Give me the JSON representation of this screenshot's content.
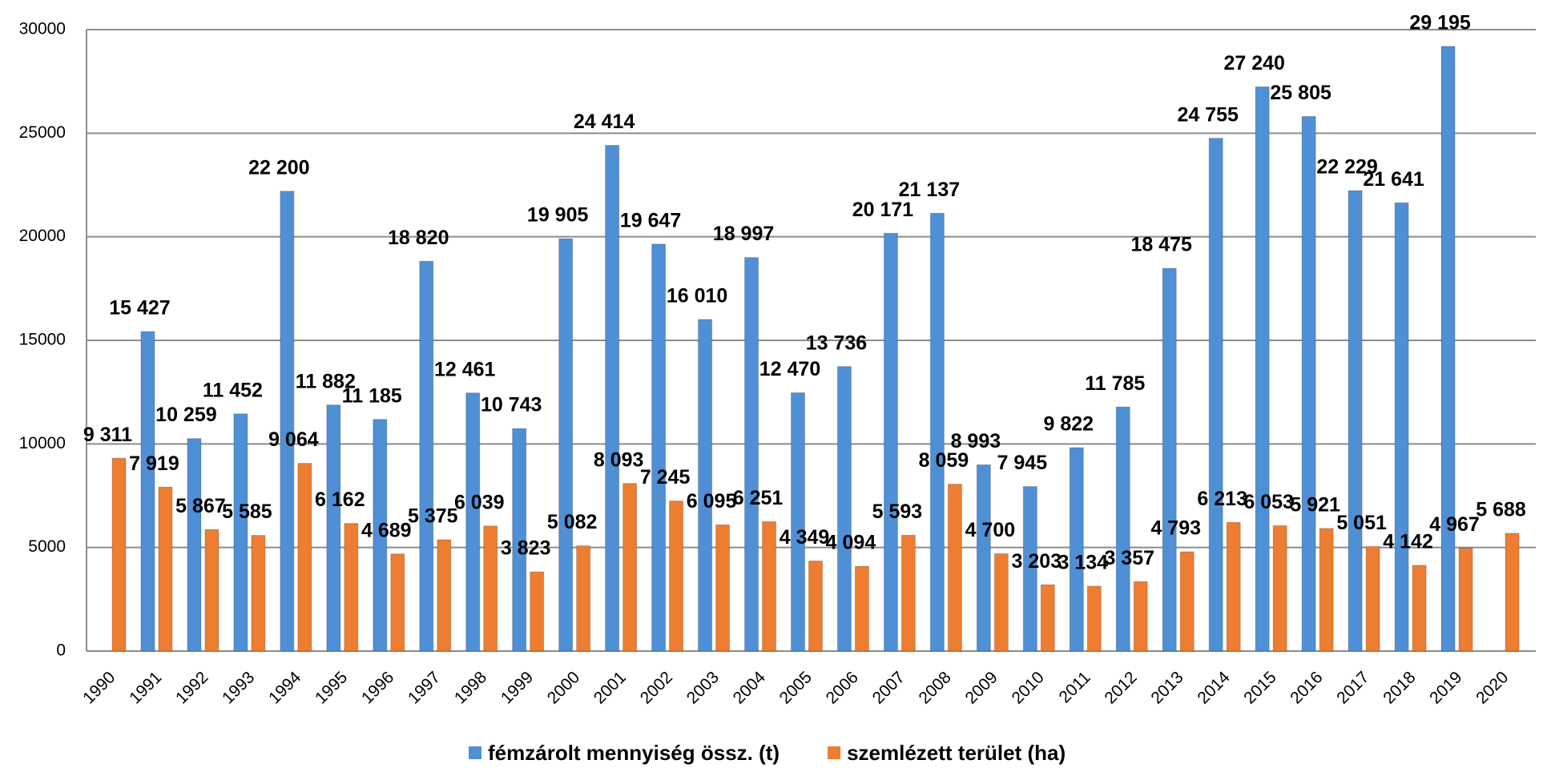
{
  "chart_data": {
    "type": "bar",
    "categories": [
      "1990",
      "1991",
      "1992",
      "1993",
      "1994",
      "1995",
      "1996",
      "1997",
      "1998",
      "1999",
      "2000",
      "2001",
      "2002",
      "2003",
      "2004",
      "2005",
      "2006",
      "2007",
      "2008",
      "2009",
      "2010",
      "2011",
      "2012",
      "2013",
      "2014",
      "2015",
      "2016",
      "2017",
      "2018",
      "2019",
      "2020"
    ],
    "series": [
      {
        "name": "fémzárolt mennyiség össz. (t)",
        "color": "#4f8fd6",
        "values": [
          null,
          15427,
          10259,
          11452,
          22200,
          11882,
          11185,
          18820,
          12461,
          10743,
          19905,
          24414,
          19647,
          16010,
          18997,
          12470,
          13736,
          20171,
          21137,
          8993,
          7945,
          9822,
          11785,
          18475,
          24755,
          27240,
          25805,
          22229,
          21641,
          29195,
          null
        ],
        "value_labels": [
          null,
          "15 427",
          "10 259",
          "11 452",
          "22 200",
          "11 882",
          "11 185",
          "18 820",
          "12 461",
          "10 743",
          "19 905",
          "24 414",
          "19 647",
          "16 010",
          "18 997",
          "12 470",
          "13 736",
          "20 171",
          "21 137",
          "8 993",
          "7 945",
          "9 822",
          "11 785",
          "18 475",
          "24 755",
          "27 240",
          "25 805",
          "22 229",
          "21 641",
          "29 195",
          null
        ]
      },
      {
        "name": "szemlézett terület (ha)",
        "color": "#ed7d31",
        "values": [
          9311,
          7919,
          5867,
          5585,
          9064,
          6162,
          4689,
          5375,
          6039,
          3823,
          5082,
          8093,
          7245,
          6095,
          6251,
          4349,
          4094,
          5593,
          8059,
          4700,
          3203,
          3134,
          3357,
          4793,
          6213,
          6053,
          5921,
          5051,
          4142,
          4967,
          5688
        ],
        "value_labels": [
          "9 311",
          "7 919",
          "5 867",
          "5 585",
          "9 064",
          "6 162",
          "4 689",
          "5 375",
          "6 039",
          "3 823",
          "5 082",
          "8 093",
          "7 245",
          "6 095",
          "6 251",
          "4 349",
          "4 094",
          "5 593",
          "8 059",
          "4 700",
          "3 203",
          "3 134",
          "3 357",
          "4 793",
          "6 213",
          "6 053",
          "5 921",
          "5 051",
          "4 142",
          "4 967",
          "5 688"
        ]
      }
    ],
    "ylim": [
      0,
      30000
    ],
    "yticks": [
      0,
      5000,
      10000,
      15000,
      20000,
      25000,
      30000
    ],
    "grid": true,
    "legend": "bottom"
  }
}
